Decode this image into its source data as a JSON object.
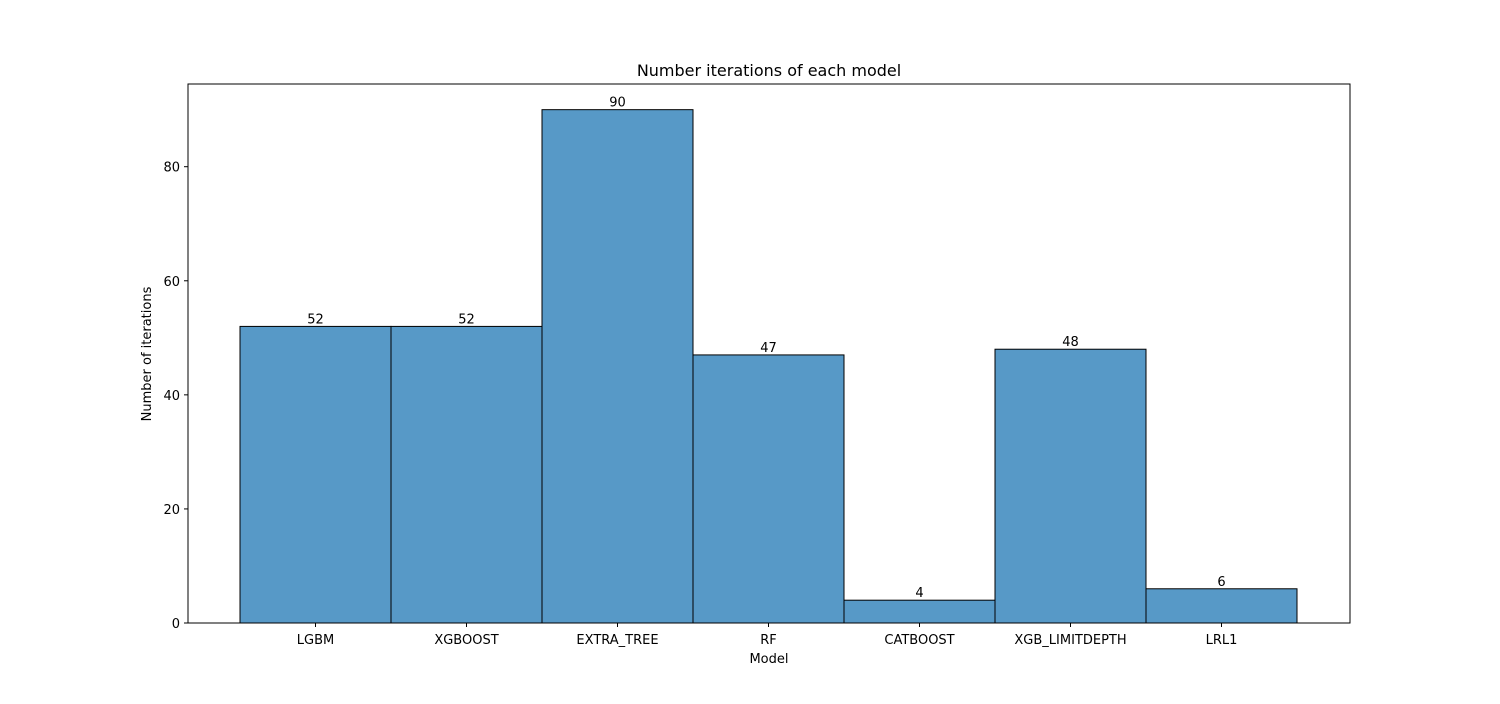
{
  "chart_data": {
    "type": "bar",
    "title": "Number iterations of each model",
    "xlabel": "Model",
    "ylabel": "Number of iterations",
    "categories": [
      "LGBM",
      "XGBOOST",
      "EXTRA_TREE",
      "RF",
      "CATBOOST",
      "XGB_LIMITDEPTH",
      "LRL1"
    ],
    "values": [
      52,
      52,
      90,
      47,
      4,
      48,
      6
    ],
    "value_labels": [
      "52",
      "52",
      "90",
      "47",
      "4",
      "48",
      "6"
    ],
    "yticks": [
      0,
      20,
      40,
      60,
      80
    ],
    "ytick_labels": [
      "0",
      "20",
      "40",
      "60",
      "80"
    ],
    "ylim": [
      0,
      94.5
    ],
    "grid": false,
    "colors": {
      "bar_fill": "#5799c7",
      "bar_edge": "#000000",
      "axis": "#000000"
    }
  }
}
